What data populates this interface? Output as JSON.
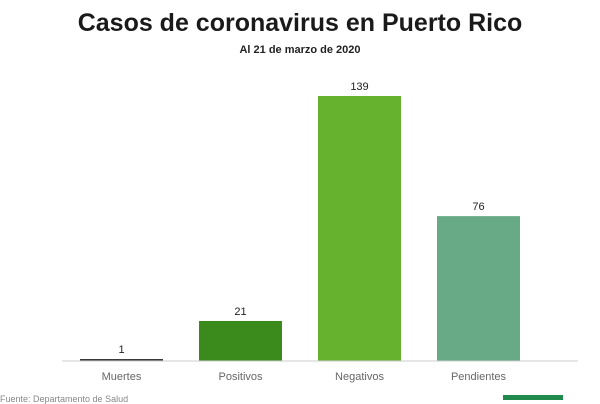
{
  "chart_data": {
    "type": "bar",
    "title": "Casos de coronavirus en Puerto Rico",
    "subtitle": "Al 21 de marzo de 2020",
    "categories": [
      "Muertes",
      "Positivos",
      "Negativos",
      "Pendientes"
    ],
    "values": [
      1,
      21,
      139,
      76
    ],
    "colors": [
      "#3a3a3a",
      "#3b8a1c",
      "#66b22f",
      "#68aa86"
    ],
    "ylim": [
      0,
      139
    ],
    "grid": false,
    "legend": "none",
    "xlabel": "",
    "ylabel": ""
  },
  "colors": {
    "baseline": "#cccccc",
    "brand": "#1f8a4c"
  },
  "footer": {
    "source": "Fuente: Departamento de Salud"
  }
}
